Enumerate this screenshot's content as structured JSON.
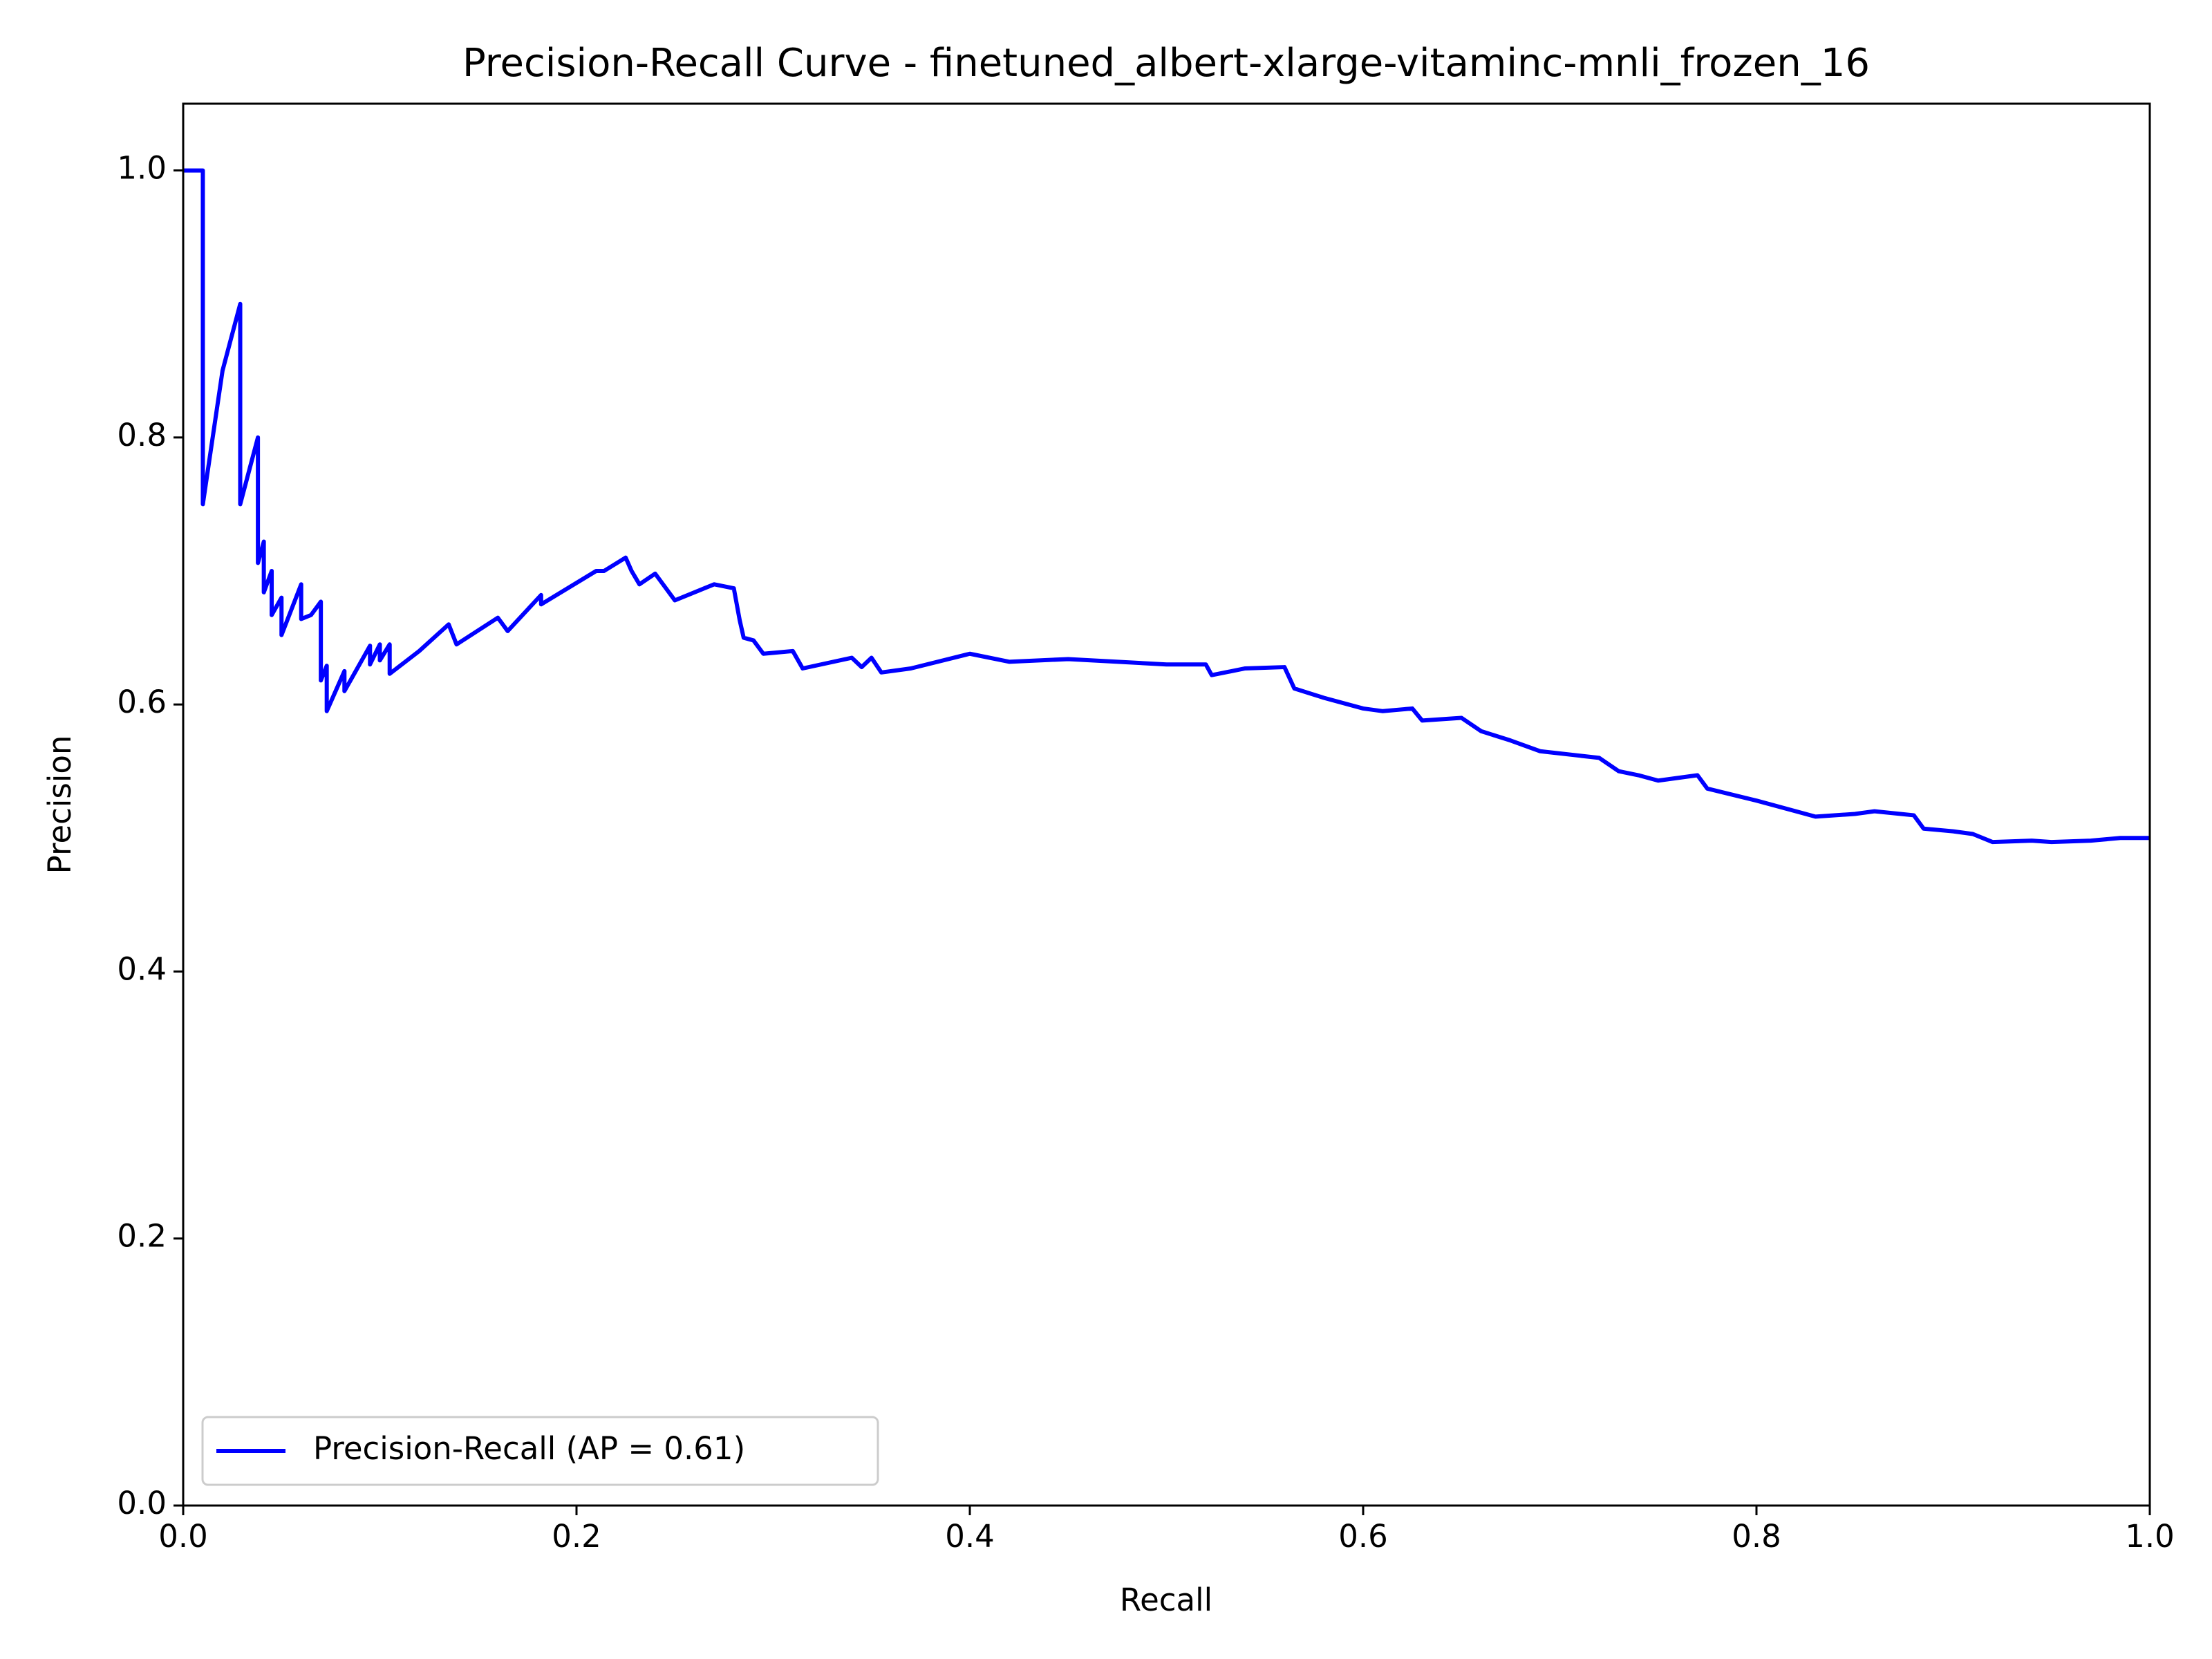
{
  "chart_data": {
    "type": "line",
    "title": "Precision-Recall Curve - finetuned_albert-xlarge-vitaminc-mnli_frozen_16",
    "x_label": "Recall",
    "y_label": "Precision",
    "xlim": [
      0,
      1
    ],
    "ylim": [
      0,
      1.05
    ],
    "xticks": [
      {
        "value": 0,
        "label": "0.0"
      },
      0.2,
      0.4,
      0.6,
      0.8,
      {
        "value": 1,
        "label": "1.0"
      }
    ],
    "yticks": [
      {
        "value": 0,
        "label": "0.0"
      },
      0.2,
      0.4,
      0.6,
      0.8,
      {
        "value": 1,
        "label": "1.0"
      }
    ],
    "grid": false,
    "legend": "lower left",
    "series": [
      {
        "name": "Precision-Recall (AP = 0.61)",
        "color": "#0000ff",
        "x": [
          0,
          0.01,
          0.01,
          0.015,
          0.02,
          0.029,
          0.029,
          0.038,
          0.038,
          0.041,
          0.041,
          0.045,
          0.045,
          0.05,
          0.05,
          0.06,
          0.06,
          0.065,
          0.07,
          0.07,
          0.073,
          0.073,
          0.082,
          0.082,
          0.095,
          0.095,
          0.1,
          0.1,
          0.105,
          0.105,
          0.12,
          0.135,
          0.139,
          0.16,
          0.165,
          0.182,
          0.182,
          0.21,
          0.214,
          0.225,
          0.228,
          0.232,
          0.24,
          0.25,
          0.27,
          0.28,
          0.283,
          0.285,
          0.29,
          0.295,
          0.31,
          0.315,
          0.34,
          0.345,
          0.35,
          0.355,
          0.37,
          0.4,
          0.42,
          0.45,
          0.5,
          0.52,
          0.523,
          0.54,
          0.56,
          0.565,
          0.58,
          0.6,
          0.61,
          0.625,
          0.63,
          0.65,
          0.66,
          0.675,
          0.69,
          0.72,
          0.73,
          0.74,
          0.75,
          0.77,
          0.775,
          0.8,
          0.82,
          0.83,
          0.85,
          0.86,
          0.88,
          0.885,
          0.9,
          0.91,
          0.92,
          0.94,
          0.95,
          0.97,
          0.985,
          1.0
        ],
        "values": [
          1.0,
          1.0,
          0.75,
          0.8,
          0.85,
          0.9,
          0.75,
          0.8,
          0.706,
          0.722,
          0.684,
          0.7,
          0.667,
          0.68,
          0.652,
          0.69,
          0.664,
          0.667,
          0.677,
          0.618,
          0.629,
          0.595,
          0.625,
          0.61,
          0.644,
          0.63,
          0.645,
          0.633,
          0.645,
          0.623,
          0.64,
          0.66,
          0.645,
          0.665,
          0.655,
          0.682,
          0.675,
          0.7,
          0.7,
          0.71,
          0.7,
          0.69,
          0.698,
          0.678,
          0.69,
          0.687,
          0.663,
          0.65,
          0.648,
          0.638,
          0.64,
          0.627,
          0.635,
          0.628,
          0.635,
          0.624,
          0.627,
          0.638,
          0.632,
          0.634,
          0.63,
          0.63,
          0.622,
          0.627,
          0.628,
          0.612,
          0.605,
          0.597,
          0.595,
          0.597,
          0.588,
          0.59,
          0.58,
          0.573,
          0.565,
          0.56,
          0.55,
          0.547,
          0.543,
          0.547,
          0.537,
          0.528,
          0.52,
          0.516,
          0.518,
          0.52,
          0.517,
          0.507,
          0.505,
          0.503,
          0.497,
          0.498,
          0.497,
          0.498,
          0.5,
          0.5
        ]
      }
    ]
  }
}
